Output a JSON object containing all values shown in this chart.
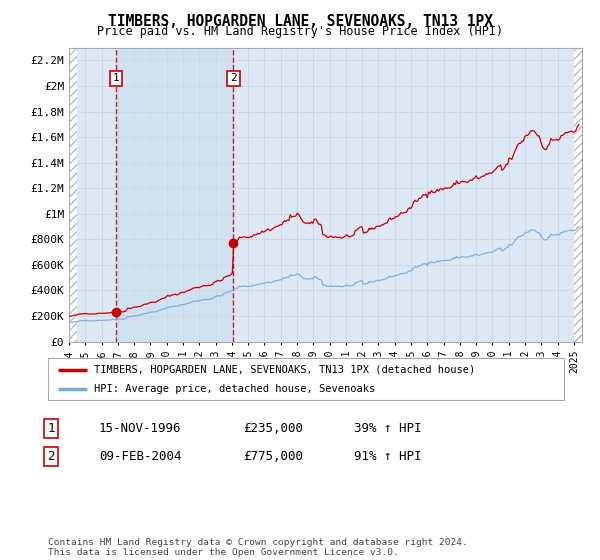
{
  "title": "TIMBERS, HOPGARDEN LANE, SEVENOAKS, TN13 1PX",
  "subtitle": "Price paid vs. HM Land Registry's House Price Index (HPI)",
  "xlim_start": 1994.0,
  "xlim_end": 2025.5,
  "ylim_min": 0,
  "ylim_max": 2300000,
  "yticks": [
    0,
    200000,
    400000,
    600000,
    800000,
    1000000,
    1200000,
    1400000,
    1600000,
    1800000,
    2000000,
    2200000
  ],
  "ytick_labels": [
    "£0",
    "£200K",
    "£400K",
    "£600K",
    "£800K",
    "£1M",
    "£1.2M",
    "£1.4M",
    "£1.6M",
    "£1.8M",
    "£2M",
    "£2.2M"
  ],
  "xticks": [
    1994,
    1995,
    1996,
    1997,
    1998,
    1999,
    2000,
    2001,
    2002,
    2003,
    2004,
    2005,
    2006,
    2007,
    2008,
    2009,
    2010,
    2011,
    2012,
    2013,
    2014,
    2015,
    2016,
    2017,
    2018,
    2019,
    2020,
    2021,
    2022,
    2023,
    2024,
    2025
  ],
  "transaction1_x": 1996.87,
  "transaction1_y": 235000,
  "transaction1_label": "1",
  "transaction1_date": "15-NOV-1996",
  "transaction1_price": "£235,000",
  "transaction1_hpi": "39% ↑ HPI",
  "transaction2_x": 2004.1,
  "transaction2_y": 775000,
  "transaction2_label": "2",
  "transaction2_date": "09-FEB-2004",
  "transaction2_price": "£775,000",
  "transaction2_hpi": "91% ↑ HPI",
  "red_line_color": "#cc0000",
  "blue_line_color": "#7aaadd",
  "bg_plot_color": "#dce8f5",
  "hatch_color": "#bbbbbb",
  "grid_color": "#cccccc",
  "vline_color": "#cc0000",
  "highlight_color": "#d0e4f5",
  "legend_label_red": "TIMBERS, HOPGARDEN LANE, SEVENOAKS, TN13 1PX (detached house)",
  "legend_label_blue": "HPI: Average price, detached house, Sevenoaks",
  "footer_text": "Contains HM Land Registry data © Crown copyright and database right 2024.\nThis data is licensed under the Open Government Licence v3.0."
}
